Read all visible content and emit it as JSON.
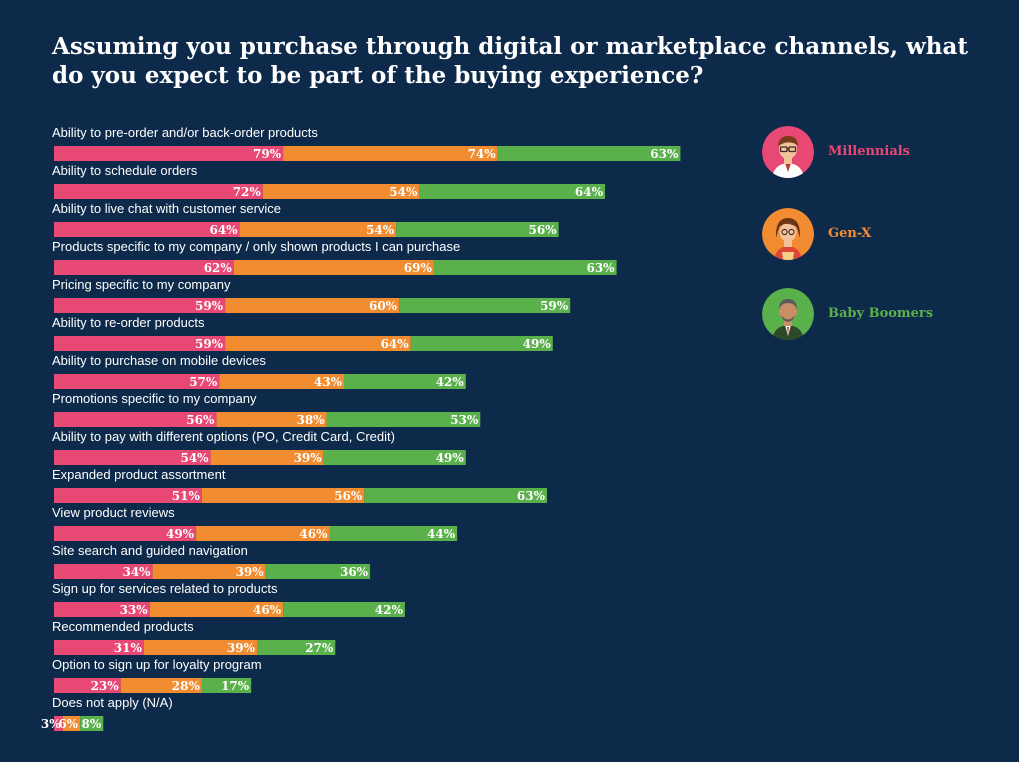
{
  "title": "Assuming you purchase through digital or marketplace channels, what do you expect to be part of the buying experience?",
  "colors": {
    "millennials": "#e84874",
    "genx": "#f28c30",
    "boomers": "#5ab04b",
    "background": "#0d2a4a"
  },
  "legend": [
    {
      "label": "Millennials",
      "color": "#e84874",
      "icon": "millennial-avatar-icon"
    },
    {
      "label": "Gen-X",
      "color": "#f28c30",
      "icon": "genx-avatar-icon"
    },
    {
      "label": "Baby Boomers",
      "color": "#5ab04b",
      "icon": "boomer-avatar-icon"
    }
  ],
  "chart_data": {
    "type": "bar",
    "orientation": "horizontal-stacked",
    "title": "Assuming you purchase through digital or marketplace channels, what do you expect to be part of the buying experience?",
    "categories": [
      "Ability to pre-order and/or back-order products",
      "Ability to schedule orders",
      "Ability to live chat with customer service",
      "Products specific to my company / only shown products I can purchase",
      "Pricing specific to my company",
      "Ability to re-order products",
      "Ability to purchase on mobile devices",
      "Promotions specific to my company",
      "Ability to pay with different options (PO, Credit Card, Credit)",
      "Expanded product assortment",
      "View product reviews",
      "Site search and guided navigation",
      "Sign up for services related to products",
      "Recommended products",
      "Option to sign up for loyalty program",
      "Does not apply (N/A)"
    ],
    "series": [
      {
        "name": "Millennials",
        "color": "#e84874",
        "values": [
          79,
          72,
          64,
          62,
          59,
          59,
          57,
          56,
          54,
          51,
          49,
          34,
          33,
          31,
          23,
          3
        ]
      },
      {
        "name": "Gen-X",
        "color": "#f28c30",
        "values": [
          74,
          54,
          54,
          69,
          60,
          64,
          43,
          38,
          39,
          56,
          46,
          39,
          46,
          39,
          28,
          6
        ]
      },
      {
        "name": "Baby Boomers",
        "color": "#5ab04b",
        "values": [
          63,
          64,
          56,
          63,
          59,
          49,
          42,
          53,
          49,
          63,
          44,
          36,
          42,
          27,
          17,
          8
        ]
      }
    ],
    "value_suffix": "%",
    "legend_position": "right"
  }
}
